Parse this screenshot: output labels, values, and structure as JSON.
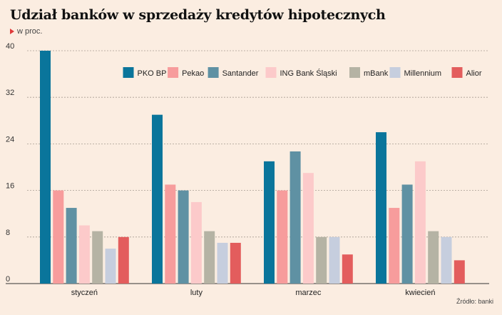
{
  "title": "Udział banków w sprzedaży kredytów hipotecznych",
  "subtitle": "w proc.",
  "source": "Źródło: banki",
  "chart_data": {
    "type": "bar",
    "title": "Udział banków w sprzedaży kredytów hipotecznych",
    "ylabel": "w proc.",
    "xlabel": "",
    "categories": [
      "styczeń",
      "luty",
      "marzec",
      "kwiecień"
    ],
    "ylim": [
      0,
      40
    ],
    "yticks": [
      0,
      8,
      16,
      24,
      32,
      40
    ],
    "grid": true,
    "legend": "top-right",
    "series": [
      {
        "name": "PKO BP",
        "color": "#0a759b",
        "values": [
          40,
          29,
          21,
          26
        ]
      },
      {
        "name": "Pekao",
        "color": "#f79c9c",
        "values": [
          16,
          17,
          16,
          13
        ]
      },
      {
        "name": "Santander",
        "color": "#5f91a3",
        "values": [
          13,
          16,
          22.7,
          17
        ]
      },
      {
        "name": "ING Bank Śląski",
        "color": "#fccaca",
        "values": [
          10,
          14,
          19,
          21
        ]
      },
      {
        "name": "mBank",
        "color": "#b5b3a4",
        "values": [
          9,
          9,
          8,
          9
        ]
      },
      {
        "name": "Millennium",
        "color": "#c6cede",
        "values": [
          6,
          7,
          8,
          8
        ]
      },
      {
        "name": "Alior",
        "color": "#e35d5d",
        "values": [
          8,
          7,
          5,
          4
        ]
      }
    ]
  }
}
